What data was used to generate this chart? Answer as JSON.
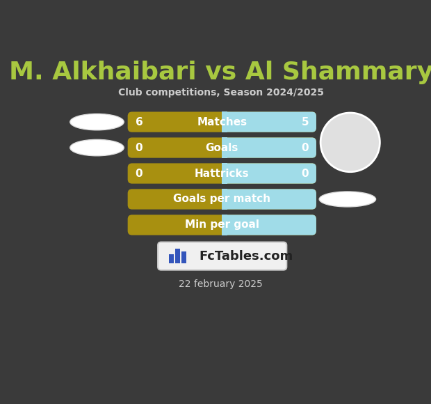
{
  "title": "M. Alkhaibari vs Al Shammary",
  "subtitle": "Club competitions, Season 2024/2025",
  "date": "22 february 2025",
  "bg_color": "#3a3a3a",
  "title_color": "#a8c840",
  "subtitle_color": "#cccccc",
  "date_color": "#cccccc",
  "rows": [
    {
      "label": "Matches",
      "val_left": "6",
      "val_right": "5",
      "has_values": true
    },
    {
      "label": "Goals",
      "val_left": "0",
      "val_right": "0",
      "has_values": true
    },
    {
      "label": "Hattricks",
      "val_left": "0",
      "val_right": "0",
      "has_values": true
    },
    {
      "label": "Goals per match",
      "val_left": "",
      "val_right": "",
      "has_values": false
    },
    {
      "label": "Min per goal",
      "val_left": "",
      "val_right": "",
      "has_values": false
    }
  ],
  "gold_color": "#a89010",
  "cyan_color": "#a0dce8",
  "bar_text_color": "#ffffff",
  "val_color": "#ffffff",
  "ellipse_color": "#ffffff",
  "ellipse_edge": "#dddddd",
  "photo_circle_color": "#e0e0e0",
  "photo_circle_edge": "#ffffff",
  "logo_bg": "#f0f0f0",
  "logo_edge": "#cccccc"
}
